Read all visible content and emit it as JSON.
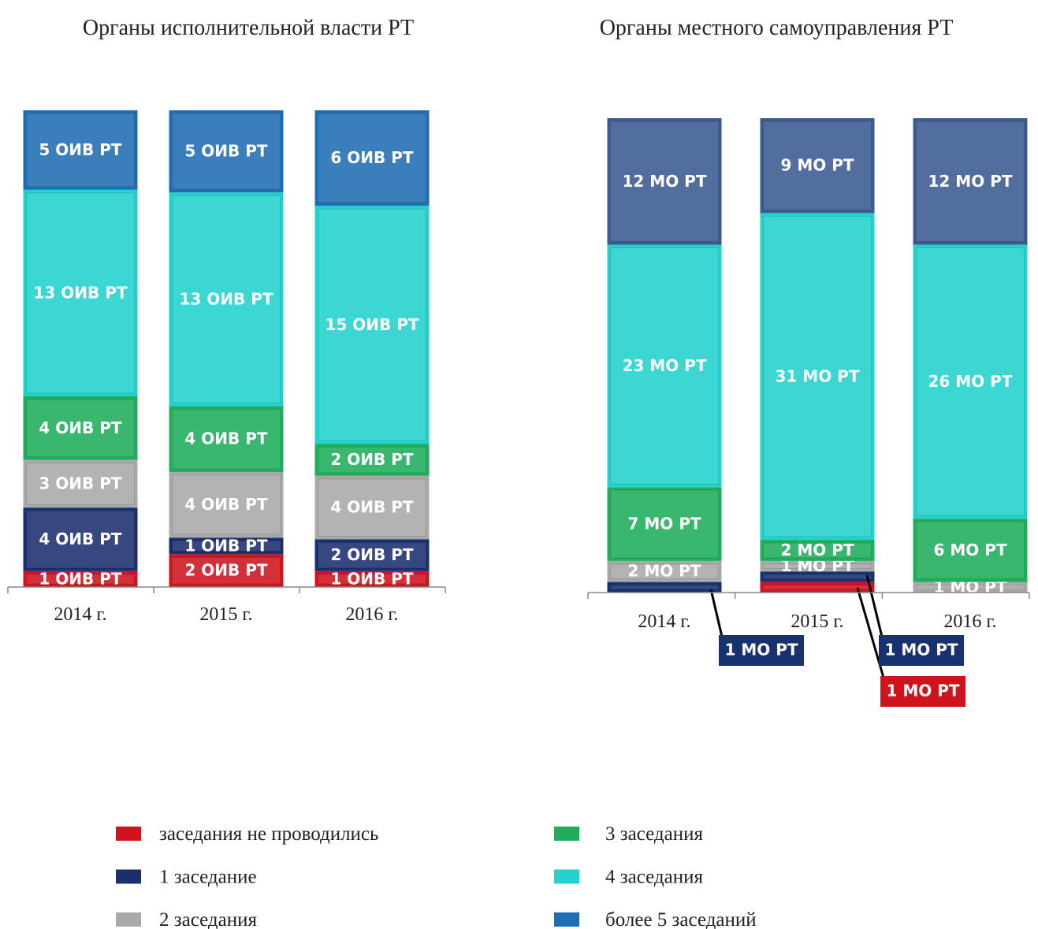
{
  "chart_data": [
    {
      "type": "stacked-bar",
      "stacking": "percent",
      "title": "Органы исполнительной власти РТ",
      "categories": [
        "2014 г.",
        "2015 г.",
        "2016 г."
      ],
      "series": [
        {
          "name": "заседания не проводились",
          "color": "#d0141e",
          "values": [
            1,
            2,
            1
          ],
          "value_labels": [
            "1 ОИВ РТ",
            "2 ОИВ РТ",
            "1 ОИВ РТ"
          ]
        },
        {
          "name": "1 заседание",
          "color": "#1b2f6e",
          "values": [
            4,
            1,
            2
          ],
          "value_labels": [
            "4 ОИВ РТ",
            "1 ОИВ РТ",
            "2 ОИВ РТ"
          ]
        },
        {
          "name": "2 заседания",
          "color": "#a9a9a9",
          "values": [
            3,
            4,
            4
          ],
          "value_labels": [
            "3 ОИВ РТ",
            "4 ОИВ РТ",
            "4 ОИВ РТ"
          ]
        },
        {
          "name": "3 заседания",
          "color": "#1fae5c",
          "values": [
            4,
            4,
            2
          ],
          "value_labels": [
            "4 ОИВ РТ",
            "4 ОИВ РТ",
            "2 ОИВ РТ"
          ]
        },
        {
          "name": "4 заседания",
          "color": "#22d2cc",
          "values": [
            13,
            13,
            15
          ],
          "value_labels": [
            "13 ОИВ РТ",
            "13 ОИВ РТ",
            "15 ОИВ РТ"
          ]
        },
        {
          "name": "более 5 заседаний",
          "color": "#1f6db3",
          "values": [
            5,
            5,
            6
          ],
          "value_labels": [
            "5 ОИВ РТ",
            "5 ОИВ РТ",
            "6 ОИВ РТ"
          ]
        }
      ]
    },
    {
      "type": "stacked-bar",
      "stacking": "percent",
      "title": "Органы местного самоуправления РТ",
      "categories": [
        "2014 г.",
        "2015 г.",
        "2016 г."
      ],
      "series": [
        {
          "color": "#d0141e",
          "values": [
            0,
            1,
            0
          ],
          "value_labels": [
            null,
            "1 МО РТ",
            null
          ]
        },
        {
          "color": "#17326e",
          "values": [
            1,
            1,
            0
          ],
          "value_labels": [
            "1 МО РТ",
            "1 МО РТ",
            null
          ]
        },
        {
          "color": "#a9a9a9",
          "values": [
            2,
            1,
            1
          ],
          "value_labels": [
            "2 МО РТ",
            "1 МО РТ",
            "1 МО РТ"
          ]
        },
        {
          "color": "#1fae5c",
          "values": [
            7,
            2,
            6
          ],
          "value_labels": [
            "7 МО РТ",
            "2 МО РТ",
            "6 МО РТ"
          ]
        },
        {
          "color": "#22d2cc",
          "values": [
            23,
            31,
            26
          ],
          "value_labels": [
            "23 МО РТ",
            "31 МО РТ",
            "26 МО РТ"
          ]
        },
        {
          "color": "#3b5a92",
          "values": [
            12,
            9,
            12
          ],
          "value_labels": [
            "12 МО РТ",
            "9 МО РТ",
            "12 МО РТ"
          ]
        }
      ]
    }
  ]
}
